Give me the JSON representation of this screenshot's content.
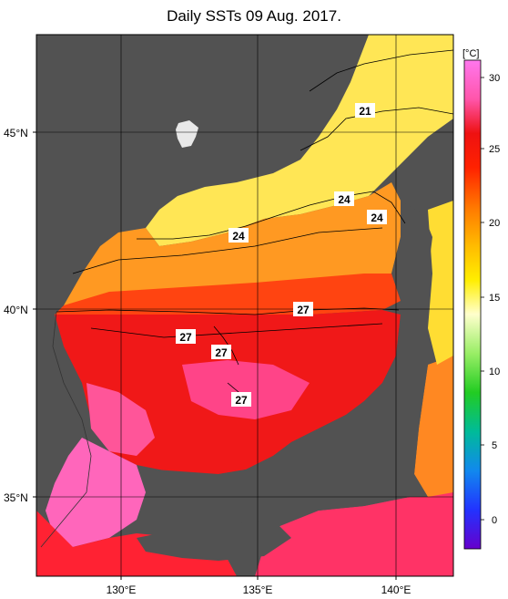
{
  "title": "Daily SSTs 09 Aug. 2017.",
  "map": {
    "lat_labels": [
      "45°N",
      "40°N",
      "35°N"
    ],
    "lon_labels": [
      "130°E",
      "135°E",
      "140°E"
    ],
    "contour_labels": [
      "21",
      "24",
      "24",
      "24",
      "27",
      "27",
      "27",
      "27"
    ]
  },
  "colorbar": {
    "unit": "[°C]",
    "ticks": [
      "30",
      "25",
      "20",
      "15",
      "10",
      "5",
      "0"
    ],
    "colors": {
      "t30": "#ff66dd",
      "t27": "#ff2020",
      "t25": "#ff4400",
      "t23": "#ff9900",
      "t20": "#ffe000",
      "t15": "#ddffaa",
      "t12": "#33dd33",
      "t7": "#00bbcc",
      "t3": "#2244ff",
      "t0": "#6600cc"
    }
  },
  "colors": {
    "land": "#525252",
    "warm_sea": "#ff5599",
    "hot_sea": "#ee1111",
    "mid_sea": "#ff7722",
    "cool_sea": "#ffdd44"
  }
}
